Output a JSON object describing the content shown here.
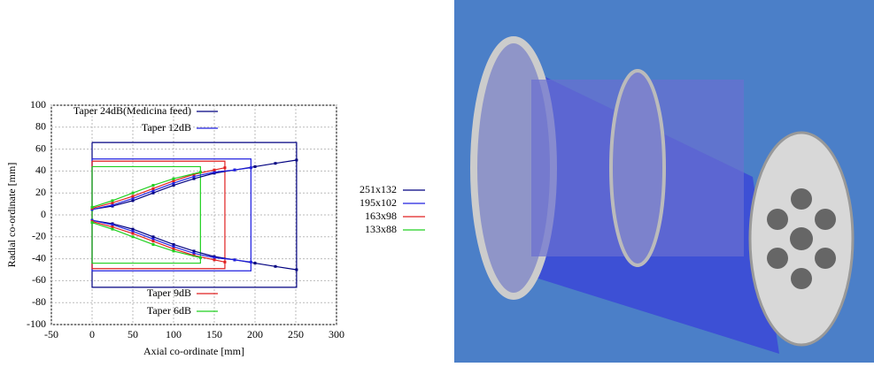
{
  "chart_data": {
    "type": "line",
    "xlabel": "Axial co-ordinate [mm]",
    "ylabel": "Radial co-ordinate [mm]",
    "xlim": [
      -50,
      300
    ],
    "ylim": [
      -100,
      100
    ],
    "xticks": [
      -50,
      0,
      50,
      100,
      150,
      200,
      250,
      300
    ],
    "yticks": [
      -100,
      -80,
      -60,
      -40,
      -20,
      0,
      20,
      40,
      60,
      80,
      100
    ],
    "grid": true,
    "series": [
      {
        "name": "Taper 24dB(Medicina feed)",
        "color": "#000080",
        "x": [
          0,
          25,
          50,
          75,
          100,
          125,
          150,
          175,
          200,
          225,
          251
        ],
        "values": [
          5,
          8,
          13,
          20,
          27,
          33,
          38,
          41,
          44,
          47,
          50
        ],
        "lower": [
          -5,
          -8,
          -13,
          -20,
          -27,
          -33,
          -38,
          -41,
          -44,
          -47,
          -50
        ]
      },
      {
        "name": "Taper 12dB",
        "color": "#2020e0",
        "x": [
          0,
          25,
          50,
          75,
          100,
          125,
          150,
          175,
          195
        ],
        "values": [
          5,
          9,
          15,
          22,
          29,
          35,
          39,
          41,
          43
        ],
        "lower": [
          -5,
          -9,
          -15,
          -22,
          -29,
          -35,
          -39,
          -41,
          -43
        ]
      },
      {
        "name": "Taper 9dB",
        "color": "#e02020",
        "x": [
          0,
          25,
          50,
          75,
          100,
          125,
          150,
          163
        ],
        "values": [
          6,
          11,
          17,
          24,
          31,
          37,
          41,
          43
        ],
        "lower": [
          -6,
          -11,
          -17,
          -24,
          -31,
          -37,
          -41,
          -43
        ]
      },
      {
        "name": "Taper 6dB",
        "color": "#20d020",
        "x": [
          0,
          25,
          50,
          75,
          100,
          133
        ],
        "values": [
          7,
          13,
          20,
          27,
          33,
          39
        ],
        "lower": [
          -7,
          -13,
          -20,
          -27,
          -33,
          -39
        ]
      }
    ],
    "boxes": [
      {
        "name": "251x132",
        "color": "#000080",
        "x": [
          0,
          251,
          251,
          0,
          0
        ],
        "values": [
          66,
          66,
          -66,
          -66,
          66
        ]
      },
      {
        "name": "195x102",
        "color": "#2020e0",
        "x": [
          0,
          195,
          195,
          0,
          0
        ],
        "values": [
          51,
          51,
          -51,
          -51,
          51
        ]
      },
      {
        "name": "163x98",
        "color": "#e02020",
        "x": [
          0,
          163,
          163,
          0,
          0
        ],
        "values": [
          49,
          49,
          -49,
          -49,
          49
        ]
      },
      {
        "name": "133x88",
        "color": "#20d020",
        "x": [
          0,
          133,
          133,
          0,
          0
        ],
        "values": [
          44,
          44,
          -44,
          -44,
          44
        ]
      }
    ]
  }
}
